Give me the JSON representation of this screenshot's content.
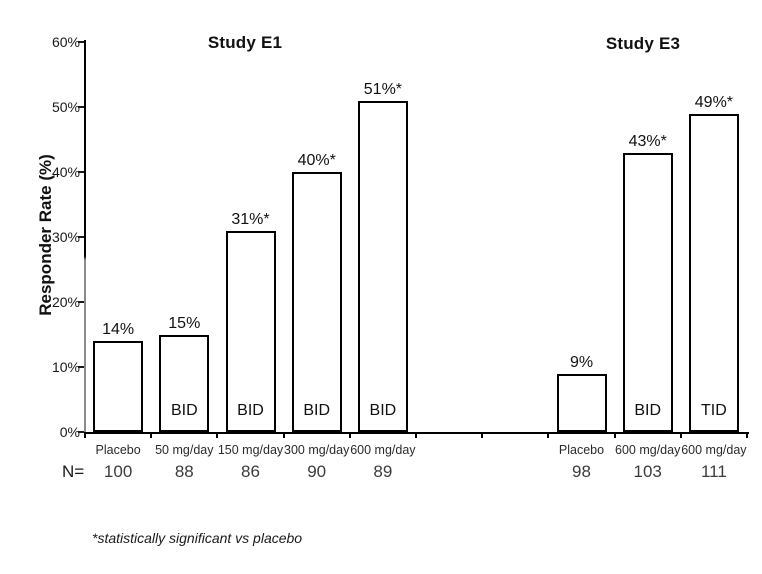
{
  "chart_data": {
    "type": "bar",
    "title_left": "Study E1",
    "title_right": "Study E3",
    "ylabel": "Responder Rate (%)",
    "ylim": [
      0,
      60
    ],
    "ytick_step": 10,
    "ytick_labels": [
      "0%",
      "10%",
      "20%",
      "30%",
      "40%",
      "50%",
      "60%"
    ],
    "grid": false,
    "legend": false,
    "bar_fill": "#ffffff",
    "bar_border": "#000000",
    "n_prefix": "N=",
    "footnote": "*statistically significant vs placebo",
    "groups": [
      {
        "name": "Study E1",
        "bars": [
          {
            "category": "Placebo",
            "value": 14,
            "label": "14%",
            "freq": "",
            "n": "100",
            "slot": 0
          },
          {
            "category": "50 mg/day",
            "value": 15,
            "label": "15%",
            "freq": "BID",
            "n": "88",
            "slot": 1
          },
          {
            "category": "150 mg/day",
            "value": 31,
            "label": "31%*",
            "freq": "BID",
            "n": "86",
            "slot": 2
          },
          {
            "category": "300 mg/day",
            "value": 40,
            "label": "40%*",
            "freq": "BID",
            "n": "90",
            "slot": 3
          },
          {
            "category": "600 mg/day",
            "value": 51,
            "label": "51%*",
            "freq": "BID",
            "n": "89",
            "slot": 4
          }
        ]
      },
      {
        "name": "Study E3",
        "bars": [
          {
            "category": "Placebo",
            "value": 9,
            "label": "9%",
            "freq": "",
            "n": "98",
            "slot": 7
          },
          {
            "category": "600 mg/day",
            "value": 43,
            "label": "43%*",
            "freq": "BID",
            "n": "103",
            "slot": 8
          },
          {
            "category": "600 mg/day",
            "value": 49,
            "label": "49%*",
            "freq": "TID",
            "n": "111",
            "slot": 9
          }
        ]
      }
    ]
  }
}
